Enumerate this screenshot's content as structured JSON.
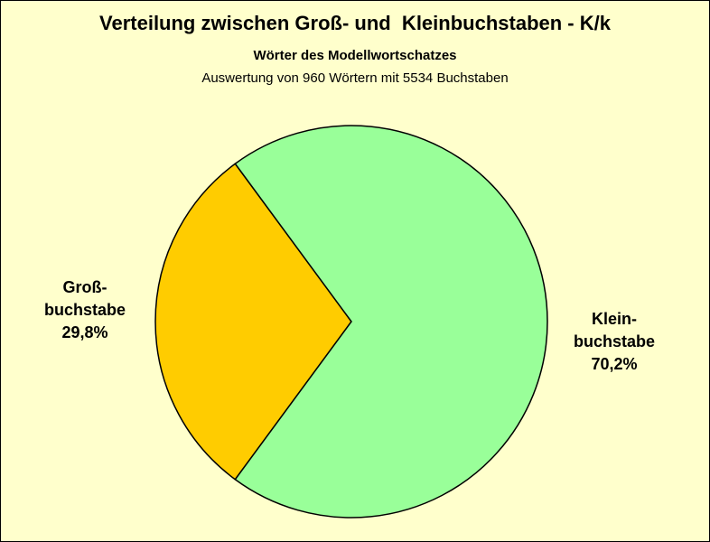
{
  "chart_data": {
    "type": "pie",
    "title": "Verteilung zwischen Groß- und  Kleinbuchstaben - K/k",
    "subtitle": "Wörter des Modellwortschatzes",
    "subtitle2": "Auswertung von 960 Wörtern mit 5534 Buchstaben",
    "slices": [
      {
        "label_line1": "Groß-",
        "label_line2": "buchstabe",
        "value": 29.8,
        "value_label": "29,8%",
        "color": "#ffcc00"
      },
      {
        "label_line1": "Klein-",
        "label_line2": "buchstabe",
        "value": 70.2,
        "value_label": "70,2%",
        "color": "#99ff99"
      }
    ],
    "background": "#ffffcc"
  }
}
